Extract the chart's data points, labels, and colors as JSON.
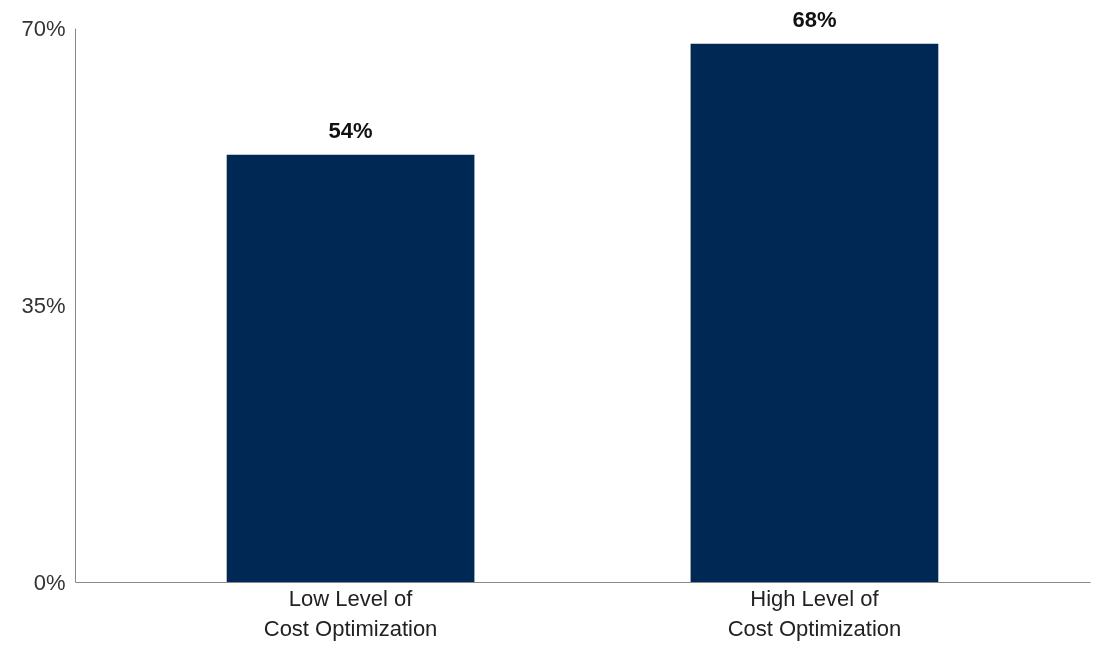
{
  "chart_data": {
    "type": "bar",
    "categories": [
      "Low Level of Cost Optimization",
      "High Level of Cost Optimization"
    ],
    "values": [
      54,
      68
    ],
    "value_labels": [
      "54%",
      "68%"
    ],
    "color": "#002855",
    "ylim": [
      0,
      70
    ],
    "yticks": [
      {
        "value": 0,
        "label": "0%"
      },
      {
        "value": 35,
        "label": "35%"
      },
      {
        "value": 70,
        "label": "70%"
      }
    ]
  }
}
